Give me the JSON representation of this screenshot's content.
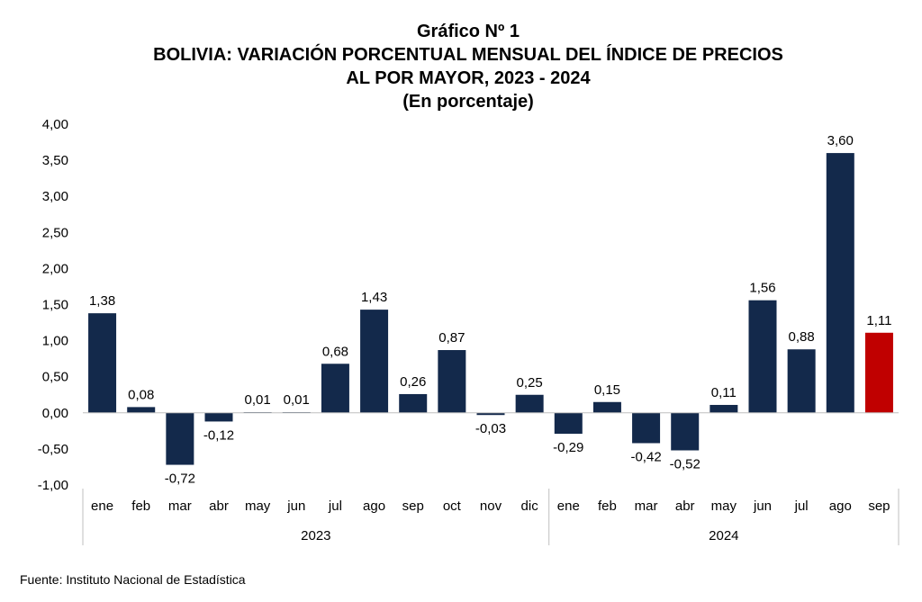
{
  "title_lines": [
    "Gráfico Nº 1",
    "BOLIVIA: VARIACIÓN PORCENTUAL MENSUAL DEL ÍNDICE DE PRECIOS",
    "AL POR MAYOR, 2023 - 2024",
    "(En porcentaje)"
  ],
  "source": "Fuente: Instituto Nacional de Estadística",
  "chart_data": {
    "type": "bar",
    "title": "BOLIVIA: VARIACIÓN PORCENTUAL MENSUAL DEL ÍNDICE DE PRECIOS AL POR MAYOR, 2023 - 2024",
    "subtitle": "(En porcentaje)",
    "xlabel": "",
    "ylabel": "",
    "ylim": [
      -1.0,
      4.0
    ],
    "yticks": [
      "-1,00",
      "-0,50",
      "0,00",
      "0,50",
      "1,00",
      "1,50",
      "2,00",
      "2,50",
      "3,00",
      "3,50",
      "4,00"
    ],
    "grid": false,
    "legend": "none",
    "groups": [
      {
        "label": "2023",
        "count": 12
      },
      {
        "label": "2024",
        "count": 9
      }
    ],
    "categories": [
      "ene",
      "feb",
      "mar",
      "abr",
      "may",
      "jun",
      "jul",
      "ago",
      "sep",
      "oct",
      "nov",
      "dic",
      "ene",
      "feb",
      "mar",
      "abr",
      "may",
      "jun",
      "jul",
      "ago",
      "sep"
    ],
    "values": [
      1.38,
      0.08,
      -0.72,
      -0.12,
      0.01,
      0.01,
      0.68,
      1.43,
      0.26,
      0.87,
      -0.03,
      0.25,
      -0.29,
      0.15,
      -0.42,
      -0.52,
      0.11,
      1.56,
      0.88,
      3.6,
      1.11
    ],
    "value_labels": [
      "1,38",
      "0,08",
      "-0,72",
      "-0,12",
      "0,01",
      "0,01",
      "0,68",
      "1,43",
      "0,26",
      "0,87",
      "-0,03",
      "0,25",
      "-0,29",
      "0,15",
      "-0,42",
      "-0,52",
      "0,11",
      "1,56",
      "0,88",
      "3,60",
      "1,11"
    ],
    "colors": {
      "bar": "#13294b",
      "highlight": "#c00000",
      "axis": "#bfbfbf"
    },
    "highlight_index": 20
  }
}
